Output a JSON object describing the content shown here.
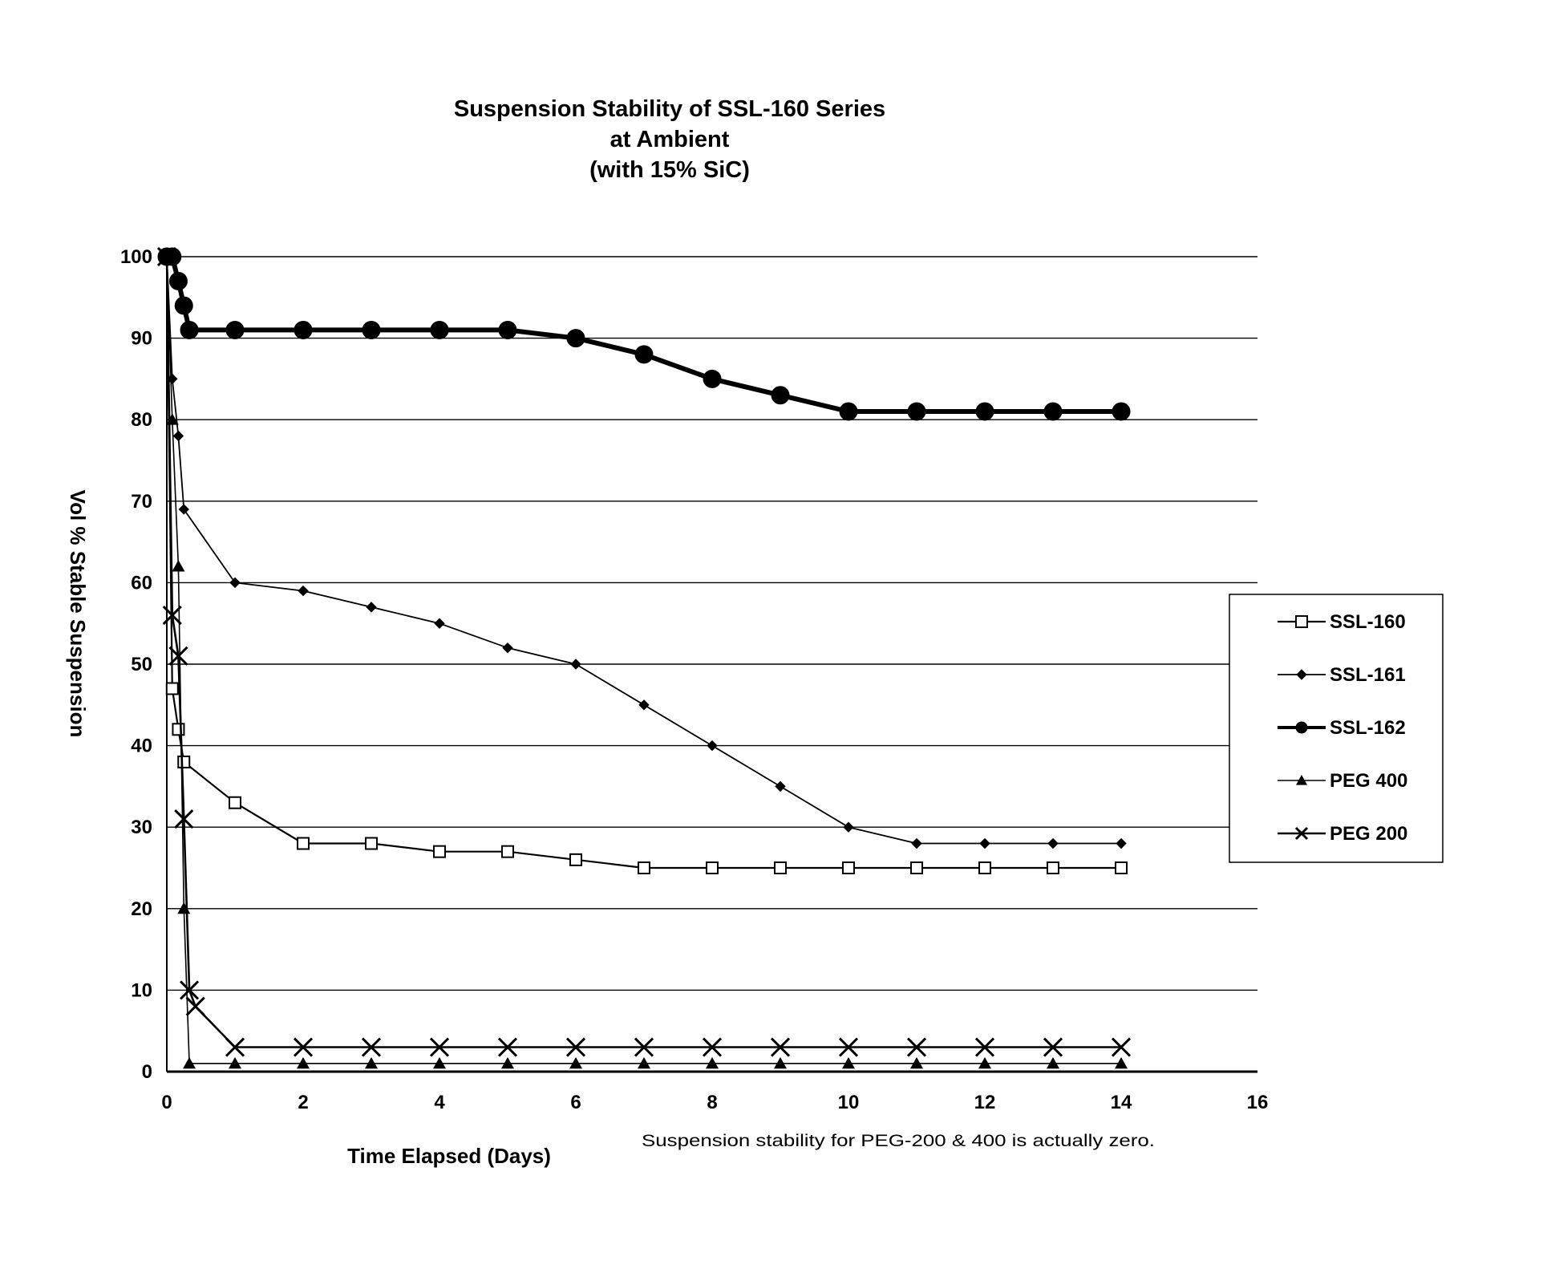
{
  "chart_data": {
    "type": "line",
    "title_lines": [
      "Suspension Stability of SSL-160 Series",
      "at Ambient",
      "(with 15% SiC)"
    ],
    "xlabel": "Time Elapsed (Days)",
    "ylabel": "Vol % Stable Suspension",
    "xlim": [
      0,
      16
    ],
    "ylim": [
      0,
      100
    ],
    "xticks": [
      0,
      2,
      4,
      6,
      8,
      10,
      12,
      14,
      16
    ],
    "yticks": [
      0,
      10,
      20,
      30,
      40,
      50,
      60,
      70,
      80,
      90,
      100
    ],
    "grid": true,
    "legend_position": "right",
    "note": "Suspension stability for PEG-200 & 400  is actually zero.",
    "series": [
      {
        "name": "SSL-160",
        "marker": "square",
        "color": "#000000",
        "x": [
          0,
          0.08,
          0.17,
          0.25,
          1,
          2,
          3,
          4,
          5,
          6,
          7,
          8,
          9,
          10,
          11,
          12,
          13,
          14
        ],
        "y": [
          100,
          47,
          42,
          38,
          33,
          28,
          28,
          27,
          27,
          26,
          25,
          25,
          25,
          25,
          25,
          25,
          25,
          25
        ]
      },
      {
        "name": "SSL-161",
        "marker": "diamond",
        "color": "#000000",
        "x": [
          0,
          0.08,
          0.17,
          0.25,
          1,
          2,
          3,
          4,
          5,
          6,
          7,
          8,
          9,
          10,
          11,
          12,
          13,
          14
        ],
        "y": [
          100,
          85,
          78,
          69,
          60,
          59,
          57,
          55,
          52,
          50,
          45,
          40,
          35,
          30,
          28,
          28,
          28,
          28
        ]
      },
      {
        "name": "SSL-162",
        "marker": "circle",
        "color": "#000000",
        "x": [
          0,
          0.08,
          0.17,
          0.25,
          0.33,
          1,
          2,
          3,
          4,
          5,
          6,
          7,
          8,
          9,
          10,
          11,
          12,
          13,
          14
        ],
        "y": [
          100,
          100,
          97,
          94,
          91,
          91,
          91,
          91,
          91,
          91,
          90,
          88,
          85,
          83,
          81,
          81,
          81,
          81,
          81
        ]
      },
      {
        "name": "PEG 400",
        "marker": "triangle",
        "color": "#000000",
        "x": [
          0,
          0.08,
          0.17,
          0.25,
          0.33,
          1,
          2,
          3,
          4,
          5,
          6,
          7,
          8,
          9,
          10,
          11,
          12,
          13,
          14
        ],
        "y": [
          100,
          80,
          62,
          20,
          1,
          1,
          1,
          1,
          1,
          1,
          1,
          1,
          1,
          1,
          1,
          1,
          1,
          1,
          1
        ]
      },
      {
        "name": "PEG 200",
        "marker": "x",
        "color": "#000000",
        "x": [
          0,
          0.08,
          0.17,
          0.25,
          0.33,
          0.42,
          1,
          2,
          3,
          4,
          5,
          6,
          7,
          8,
          9,
          10,
          11,
          12,
          13,
          14
        ],
        "y": [
          100,
          56,
          51,
          31,
          10,
          8,
          3,
          3,
          3,
          3,
          3,
          3,
          3,
          3,
          3,
          3,
          3,
          3,
          3,
          3
        ]
      }
    ]
  }
}
